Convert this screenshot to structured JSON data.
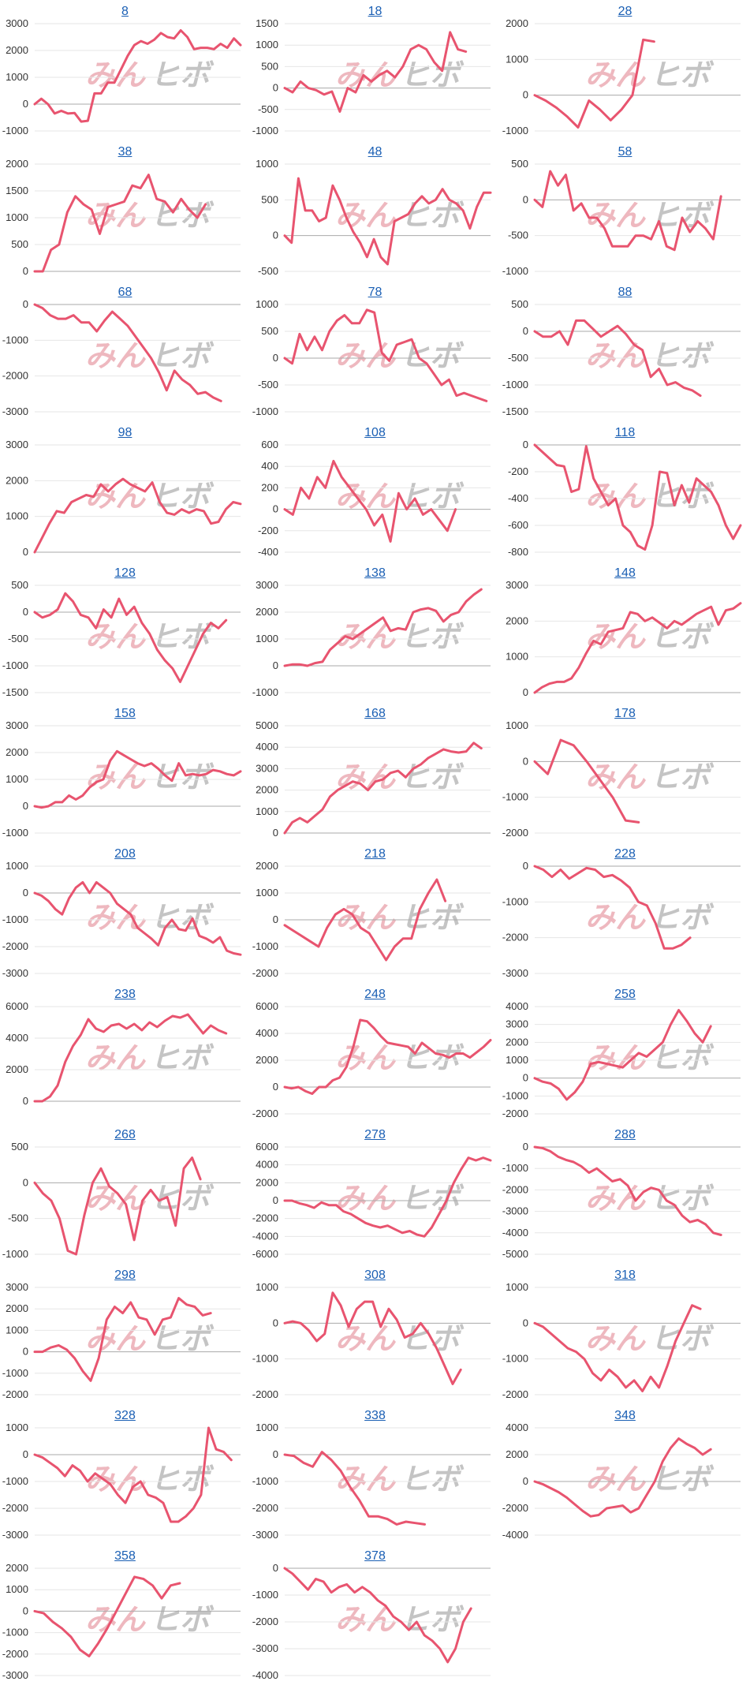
{
  "watermark": {
    "left": "みん",
    "right": "ヒボ"
  },
  "colors": {
    "line": "#e8546f",
    "grid": "#e6e6e6",
    "zero": "#aaaaaa",
    "title": "#1a5fb4"
  },
  "chart_data": [
    {
      "type": "line",
      "title": "8",
      "yticks": [
        3000,
        2000,
        1000,
        0,
        -1000
      ],
      "ylim": [
        -1000,
        3000
      ],
      "values": [
        0,
        200,
        0,
        -350,
        -250,
        -350,
        -330,
        -650,
        -620,
        400,
        400,
        800,
        800,
        1300,
        1800,
        2200,
        2350,
        2250,
        2400,
        2650,
        2500,
        2450,
        2750,
        2500,
        2050,
        2100,
        2100,
        2050,
        2250,
        2100,
        2450,
        2200
      ]
    },
    {
      "type": "line",
      "title": "18",
      "yticks": [
        1500,
        1000,
        500,
        0,
        -500,
        -1000
      ],
      "ylim": [
        -1000,
        1500
      ],
      "values": [
        0,
        -100,
        150,
        0,
        -50,
        -150,
        -80,
        -550,
        0,
        -100,
        300,
        150,
        300,
        400,
        250,
        500,
        900,
        1000,
        900,
        600,
        400,
        1300,
        900,
        850
      ]
    },
    {
      "type": "line",
      "title": "28",
      "yticks": [
        2000,
        1000,
        0,
        -1000
      ],
      "ylim": [
        -1000,
        2000
      ],
      "values": [
        0,
        -150,
        -350,
        -600,
        -900,
        -150,
        -400,
        -700,
        -400,
        0,
        1550,
        1500
      ]
    },
    {
      "type": "line",
      "title": "38",
      "yticks": [
        2000,
        1500,
        1000,
        500,
        0
      ],
      "ylim": [
        0,
        2000
      ],
      "values": [
        0,
        0,
        400,
        500,
        1100,
        1400,
        1250,
        1150,
        700,
        1200,
        1250,
        1300,
        1600,
        1550,
        1800,
        1350,
        1300,
        1100,
        1350,
        1150,
        1000,
        1250
      ]
    },
    {
      "type": "line",
      "title": "48",
      "yticks": [
        1000,
        500,
        0,
        -500
      ],
      "ylim": [
        -500,
        1000
      ],
      "values": [
        0,
        -100,
        800,
        350,
        350,
        200,
        250,
        700,
        500,
        250,
        50,
        -100,
        -300,
        -50,
        -300,
        -400,
        200,
        250,
        300,
        450,
        550,
        450,
        500,
        650,
        500,
        450,
        350,
        100,
        400,
        600,
        600
      ]
    },
    {
      "type": "line",
      "title": "58",
      "yticks": [
        500,
        0,
        -500,
        -1000
      ],
      "ylim": [
        -1000,
        500
      ],
      "values": [
        0,
        -100,
        400,
        200,
        350,
        -150,
        -50,
        -250,
        -250,
        -400,
        -650,
        -650,
        -650,
        -500,
        -500,
        -550,
        -300,
        -650,
        -700,
        -250,
        -450,
        -300,
        -400,
        -550,
        50
      ]
    },
    {
      "type": "line",
      "title": "68",
      "yticks": [
        0,
        -1000,
        -2000,
        -3000
      ],
      "ylim": [
        -3000,
        0
      ],
      "values": [
        0,
        -100,
        -300,
        -400,
        -400,
        -300,
        -500,
        -500,
        -750,
        -450,
        -200,
        -400,
        -600,
        -900,
        -1200,
        -1500,
        -1900,
        -2400,
        -1850,
        -2100,
        -2250,
        -2500,
        -2450,
        -2600,
        -2700
      ]
    },
    {
      "type": "line",
      "title": "78",
      "yticks": [
        1000,
        500,
        0,
        -500,
        -1000
      ],
      "ylim": [
        -1000,
        1000
      ],
      "values": [
        0,
        -100,
        450,
        150,
        400,
        150,
        500,
        700,
        800,
        650,
        650,
        900,
        850,
        100,
        -50,
        250,
        300,
        350,
        0,
        -100,
        -300,
        -500,
        -400,
        -700,
        -650,
        -700,
        -750,
        -800
      ]
    },
    {
      "type": "line",
      "title": "88",
      "yticks": [
        500,
        0,
        -500,
        -1000,
        -1500
      ],
      "ylim": [
        -1500,
        500
      ],
      "values": [
        0,
        -100,
        -100,
        0,
        -250,
        200,
        200,
        50,
        -100,
        0,
        100,
        -50,
        -250,
        -350,
        -850,
        -700,
        -1000,
        -950,
        -1050,
        -1100,
        -1200
      ]
    },
    {
      "type": "line",
      "title": "98",
      "yticks": [
        3000,
        2000,
        1000,
        0
      ],
      "ylim": [
        0,
        3000
      ],
      "values": [
        0,
        400,
        800,
        1150,
        1100,
        1400,
        1500,
        1600,
        1550,
        1900,
        1700,
        1900,
        2050,
        1900,
        1800,
        1700,
        1950,
        1400,
        1100,
        1050,
        1200,
        1100,
        1200,
        1150,
        800,
        850,
        1200,
        1400,
        1350
      ]
    },
    {
      "type": "line",
      "title": "108",
      "yticks": [
        600,
        400,
        200,
        0,
        -200,
        -400
      ],
      "ylim": [
        -400,
        600
      ],
      "values": [
        0,
        -50,
        200,
        100,
        300,
        200,
        450,
        300,
        200,
        100,
        0,
        -150,
        -50,
        -300,
        150,
        0,
        100,
        -50,
        0,
        -100,
        -200,
        0
      ]
    },
    {
      "type": "line",
      "title": "118",
      "yticks": [
        0,
        -200,
        -400,
        -600,
        -800
      ],
      "ylim": [
        -800,
        0
      ],
      "values": [
        0,
        -50,
        -100,
        -150,
        -160,
        -350,
        -330,
        -10,
        -250,
        -350,
        -450,
        -400,
        -600,
        -650,
        -750,
        -780,
        -600,
        -200,
        -210,
        -450,
        -300,
        -430,
        -250,
        -300,
        -350,
        -450,
        -600,
        -700,
        -600
      ]
    },
    {
      "type": "line",
      "title": "128",
      "yticks": [
        500,
        0,
        -500,
        -1000,
        -1500
      ],
      "ylim": [
        -1500,
        500
      ],
      "values": [
        0,
        -100,
        -50,
        50,
        350,
        200,
        -50,
        -100,
        -300,
        50,
        -100,
        250,
        -50,
        100,
        -200,
        -400,
        -700,
        -900,
        -1050,
        -1300,
        -1000,
        -700,
        -400,
        -200,
        -300,
        -150
      ]
    },
    {
      "type": "line",
      "title": "138",
      "yticks": [
        3000,
        2000,
        1000,
        0,
        -1000
      ],
      "ylim": [
        -1000,
        3000
      ],
      "values": [
        0,
        50,
        50,
        0,
        100,
        150,
        600,
        850,
        1100,
        1000,
        1200,
        1400,
        1600,
        1800,
        1300,
        1400,
        1350,
        2000,
        2100,
        2150,
        2050,
        1650,
        1900,
        2000,
        2400,
        2650,
        2850
      ]
    },
    {
      "type": "line",
      "title": "148",
      "yticks": [
        3000,
        2000,
        1000,
        0
      ],
      "ylim": [
        0,
        3000
      ],
      "values": [
        0,
        150,
        250,
        300,
        300,
        400,
        700,
        1100,
        1450,
        1350,
        1700,
        1750,
        1800,
        2250,
        2200,
        2000,
        2100,
        1950,
        1800,
        2000,
        1900,
        2050,
        2200,
        2300,
        2400,
        1900,
        2300,
        2350,
        2500
      ]
    },
    {
      "type": "line",
      "title": "158",
      "yticks": [
        3000,
        2000,
        1000,
        0,
        -1000
      ],
      "ylim": [
        -1000,
        3000
      ],
      "values": [
        0,
        -50,
        0,
        150,
        150,
        400,
        250,
        400,
        700,
        900,
        1000,
        1700,
        2050,
        1900,
        1750,
        1600,
        1500,
        1600,
        1400,
        1150,
        950,
        1600,
        1150,
        1200,
        1150,
        1200,
        1350,
        1300,
        1200,
        1150,
        1300
      ]
    },
    {
      "type": "line",
      "title": "168",
      "yticks": [
        5000,
        4000,
        3000,
        2000,
        1000,
        0
      ],
      "ylim": [
        0,
        5000
      ],
      "values": [
        0,
        500,
        700,
        500,
        800,
        1100,
        1700,
        2000,
        2200,
        2400,
        2300,
        2000,
        2400,
        2500,
        2800,
        2900,
        2600,
        3000,
        3200,
        3500,
        3700,
        3900,
        3800,
        3750,
        3800,
        4200,
        3950
      ]
    },
    {
      "type": "line",
      "title": "178",
      "yticks": [
        1000,
        0,
        -1000,
        -2000
      ],
      "ylim": [
        -2000,
        1000
      ],
      "values": [
        0,
        -350,
        600,
        450,
        0,
        -500,
        -1000,
        -1650,
        -1700
      ]
    },
    {
      "type": "line",
      "title": "208",
      "yticks": [
        1000,
        0,
        -1000,
        -2000,
        -3000
      ],
      "ylim": [
        -3000,
        1000
      ],
      "values": [
        0,
        -100,
        -300,
        -600,
        -800,
        -200,
        200,
        400,
        0,
        400,
        200,
        0,
        -400,
        -600,
        -800,
        -1300,
        -1500,
        -1700,
        -1950,
        -1300,
        -1000,
        -1350,
        -1400,
        -950,
        -1600,
        -1700,
        -1850,
        -1650,
        -2150,
        -2250,
        -2300
      ]
    },
    {
      "type": "line",
      "title": "218",
      "yticks": [
        2000,
        1000,
        0,
        -1000,
        -2000
      ],
      "ylim": [
        -2000,
        2000
      ],
      "values": [
        -200,
        -400,
        -600,
        -800,
        -1000,
        -300,
        200,
        400,
        200,
        -300,
        -500,
        -1000,
        -1500,
        -1000,
        -700,
        -700,
        400,
        1000,
        1500,
        700
      ]
    },
    {
      "type": "line",
      "title": "228",
      "yticks": [
        0,
        -1000,
        -2000,
        -3000
      ],
      "ylim": [
        -3000,
        0
      ],
      "values": [
        0,
        -100,
        -300,
        -100,
        -350,
        -200,
        -50,
        -100,
        -300,
        -250,
        -400,
        -600,
        -1000,
        -1100,
        -1600,
        -2300,
        -2300,
        -2200,
        -2000
      ]
    },
    {
      "type": "line",
      "title": "238",
      "yticks": [
        6000,
        4000,
        2000,
        0
      ],
      "ylim": [
        -800,
        6000
      ],
      "values": [
        0,
        0,
        300,
        1000,
        2500,
        3500,
        4200,
        5200,
        4600,
        4400,
        4800,
        4900,
        4600,
        4900,
        4500,
        5000,
        4700,
        5100,
        5400,
        5300,
        5500,
        4900,
        4300,
        4800,
        4500,
        4300
      ]
    },
    {
      "type": "line",
      "title": "248",
      "yticks": [
        6000,
        4000,
        2000,
        0,
        -2000
      ],
      "ylim": [
        -2000,
        6000
      ],
      "values": [
        0,
        -100,
        0,
        -300,
        -500,
        0,
        0,
        500,
        700,
        1500,
        3000,
        5000,
        4900,
        4400,
        3800,
        3300,
        3200,
        3100,
        3000,
        2500,
        3300,
        2900,
        2500,
        2400,
        2200,
        2500,
        2500,
        2200,
        2600,
        3000,
        3500
      ]
    },
    {
      "type": "line",
      "title": "258",
      "yticks": [
        4000,
        3000,
        2000,
        1000,
        0,
        -1000,
        -2000
      ],
      "ylim": [
        -2000,
        4000
      ],
      "values": [
        0,
        -200,
        -300,
        -600,
        -1200,
        -800,
        -200,
        800,
        900,
        800,
        700,
        600,
        1000,
        1400,
        1200,
        1600,
        2000,
        3000,
        3800,
        3200,
        2500,
        2000,
        2900
      ]
    },
    {
      "type": "line",
      "title": "268",
      "yticks": [
        500,
        0,
        -500,
        -1000
      ],
      "ylim": [
        -1000,
        500
      ],
      "values": [
        0,
        -150,
        -250,
        -500,
        -950,
        -1000,
        -450,
        0,
        200,
        -50,
        -150,
        -300,
        -800,
        -250,
        -100,
        -250,
        -200,
        -600,
        200,
        350,
        50
      ]
    },
    {
      "type": "line",
      "title": "278",
      "yticks": [
        6000,
        4000,
        2000,
        0,
        -2000,
        -4000,
        -6000
      ],
      "ylim": [
        -6000,
        6000
      ],
      "values": [
        0,
        0,
        -300,
        -500,
        -800,
        -200,
        -500,
        -500,
        -1200,
        -1500,
        -2000,
        -2500,
        -2800,
        -3000,
        -2800,
        -3200,
        -3600,
        -3400,
        -3800,
        -4000,
        -3000,
        -1500,
        0,
        2000,
        3500,
        4800,
        4500,
        4800,
        4500
      ]
    },
    {
      "type": "line",
      "title": "288",
      "yticks": [
        0,
        -1000,
        -2000,
        -3000,
        -4000,
        -5000
      ],
      "ylim": [
        -5000,
        0
      ],
      "values": [
        0,
        -50,
        -200,
        -450,
        -600,
        -700,
        -900,
        -1200,
        -1000,
        -1300,
        -1600,
        -1500,
        -1800,
        -2500,
        -2100,
        -1900,
        -2000,
        -2500,
        -2700,
        -3200,
        -3500,
        -3400,
        -3600,
        -4000,
        -4100
      ]
    },
    {
      "type": "line",
      "title": "298",
      "yticks": [
        3000,
        2000,
        1000,
        0,
        -1000,
        -2000
      ],
      "ylim": [
        -2000,
        3000
      ],
      "values": [
        0,
        0,
        200,
        300,
        100,
        -300,
        -900,
        -1350,
        -300,
        1500,
        2100,
        1800,
        2300,
        1600,
        1500,
        800,
        1500,
        1600,
        2500,
        2200,
        2100,
        1700,
        1800
      ]
    },
    {
      "type": "line",
      "title": "308",
      "yticks": [
        1000,
        0,
        -1000,
        -2000
      ],
      "ylim": [
        -2000,
        1000
      ],
      "values": [
        0,
        50,
        0,
        -200,
        -500,
        -300,
        850,
        500,
        -100,
        400,
        600,
        600,
        -100,
        400,
        100,
        -400,
        -300,
        0,
        -300,
        -700,
        -1200,
        -1700,
        -1300
      ]
    },
    {
      "type": "line",
      "title": "318",
      "yticks": [
        1000,
        0,
        -1000,
        -2000
      ],
      "ylim": [
        -2000,
        1000
      ],
      "values": [
        0,
        -100,
        -300,
        -500,
        -700,
        -800,
        -1000,
        -1400,
        -1600,
        -1300,
        -1500,
        -1800,
        -1600,
        -1900,
        -1500,
        -1800,
        -1200,
        -500,
        0,
        500,
        400
      ]
    },
    {
      "type": "line",
      "title": "328",
      "yticks": [
        1000,
        0,
        -1000,
        -2000,
        -3000
      ],
      "ylim": [
        -3000,
        1000
      ],
      "values": [
        0,
        -100,
        -300,
        -500,
        -800,
        -400,
        -600,
        -1000,
        -700,
        -900,
        -1100,
        -1500,
        -1800,
        -1200,
        -1000,
        -1500,
        -1600,
        -1800,
        -2500,
        -2500,
        -2300,
        -2000,
        -1500,
        1000,
        200,
        100,
        -200
      ]
    },
    {
      "type": "line",
      "title": "338",
      "yticks": [
        1000,
        0,
        -1000,
        -2000,
        -3000
      ],
      "ylim": [
        -3000,
        1000
      ],
      "values": [
        0,
        -50,
        -300,
        -450,
        100,
        -200,
        -600,
        -1200,
        -1700,
        -2300,
        -2300,
        -2400,
        -2600,
        -2500,
        -2550,
        -2600
      ]
    },
    {
      "type": "line",
      "title": "348",
      "yticks": [
        4000,
        2000,
        0,
        -2000,
        -4000
      ],
      "ylim": [
        -4000,
        4000
      ],
      "values": [
        0,
        -200,
        -500,
        -800,
        -1200,
        -1700,
        -2200,
        -2600,
        -2500,
        -2000,
        -1900,
        -1800,
        -2300,
        -2000,
        -1000,
        0,
        1500,
        2500,
        3200,
        2800,
        2500,
        2000,
        2400
      ]
    },
    {
      "type": "line",
      "title": "358",
      "yticks": [
        2000,
        1000,
        0,
        -1000,
        -2000,
        -3000
      ],
      "ylim": [
        -3000,
        2000
      ],
      "values": [
        0,
        -100,
        -500,
        -800,
        -1200,
        -1800,
        -2100,
        -1500,
        -800,
        0,
        800,
        1600,
        1500,
        1200,
        600,
        1200,
        1300
      ]
    },
    {
      "type": "line",
      "title": "378",
      "yticks": [
        0,
        -1000,
        -2000,
        -3000,
        -4000
      ],
      "ylim": [
        -4000,
        0
      ],
      "values": [
        0,
        -200,
        -500,
        -800,
        -400,
        -500,
        -900,
        -700,
        -600,
        -900,
        -700,
        -900,
        -1200,
        -1400,
        -1800,
        -2000,
        -2300,
        -2000,
        -2500,
        -2700,
        -3000,
        -3500,
        -3000,
        -2000,
        -1500
      ]
    }
  ]
}
